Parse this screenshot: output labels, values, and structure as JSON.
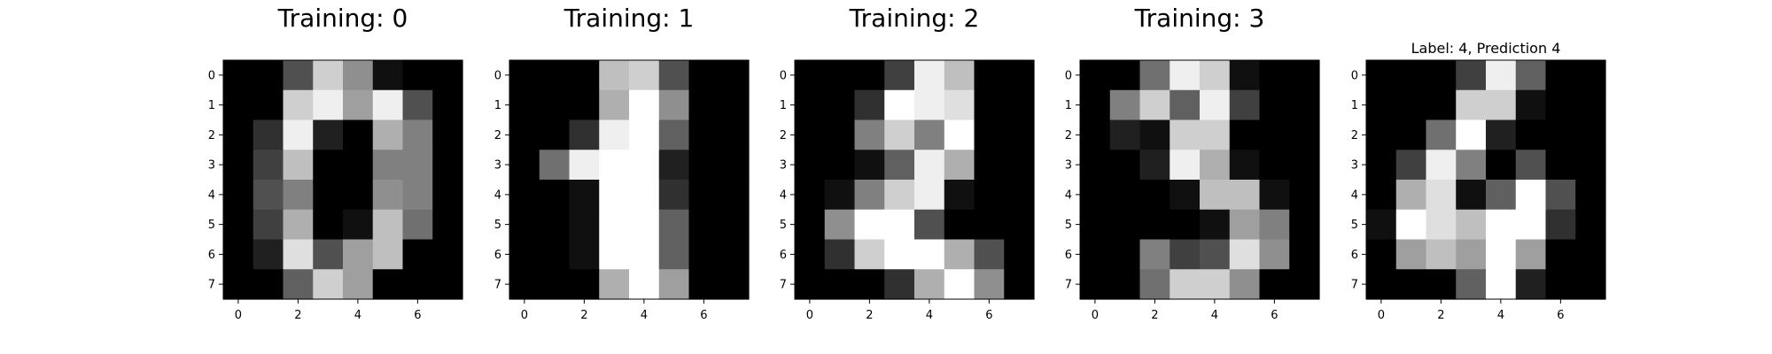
{
  "chart_data": [
    {
      "type": "heatmap",
      "title": "Training: 0",
      "colormap": "gray",
      "x_ticks": [
        "0",
        "2",
        "4",
        "6"
      ],
      "y_ticks": [
        "0",
        "1",
        "2",
        "3",
        "4",
        "5",
        "6",
        "7"
      ],
      "values": [
        [
          0,
          0,
          5,
          13,
          9,
          1,
          0,
          0
        ],
        [
          0,
          0,
          13,
          15,
          10,
          15,
          5,
          0
        ],
        [
          0,
          3,
          15,
          2,
          0,
          11,
          8,
          0
        ],
        [
          0,
          4,
          12,
          0,
          0,
          8,
          8,
          0
        ],
        [
          0,
          5,
          8,
          0,
          0,
          9,
          8,
          0
        ],
        [
          0,
          4,
          11,
          0,
          1,
          12,
          7,
          0
        ],
        [
          0,
          2,
          14,
          5,
          10,
          12,
          0,
          0
        ],
        [
          0,
          0,
          6,
          13,
          10,
          0,
          0,
          0
        ]
      ]
    },
    {
      "type": "heatmap",
      "title": "Training: 1",
      "colormap": "gray",
      "x_ticks": [
        "0",
        "2",
        "4",
        "6"
      ],
      "y_ticks": [
        "0",
        "1",
        "2",
        "3",
        "4",
        "5",
        "6",
        "7"
      ],
      "values": [
        [
          0,
          0,
          0,
          12,
          13,
          5,
          0,
          0
        ],
        [
          0,
          0,
          0,
          11,
          16,
          9,
          0,
          0
        ],
        [
          0,
          0,
          3,
          15,
          16,
          6,
          0,
          0
        ],
        [
          0,
          7,
          15,
          16,
          16,
          2,
          0,
          0
        ],
        [
          0,
          0,
          1,
          16,
          16,
          3,
          0,
          0
        ],
        [
          0,
          0,
          1,
          16,
          16,
          6,
          0,
          0
        ],
        [
          0,
          0,
          1,
          16,
          16,
          6,
          0,
          0
        ],
        [
          0,
          0,
          0,
          11,
          16,
          10,
          0,
          0
        ]
      ]
    },
    {
      "type": "heatmap",
      "title": "Training: 2",
      "colormap": "gray",
      "x_ticks": [
        "0",
        "2",
        "4",
        "6"
      ],
      "y_ticks": [
        "0",
        "1",
        "2",
        "3",
        "4",
        "5",
        "6",
        "7"
      ],
      "values": [
        [
          0,
          0,
          0,
          4,
          15,
          12,
          0,
          0
        ],
        [
          0,
          0,
          3,
          16,
          15,
          14,
          0,
          0
        ],
        [
          0,
          0,
          8,
          13,
          8,
          16,
          0,
          0
        ],
        [
          0,
          0,
          1,
          6,
          15,
          11,
          0,
          0
        ],
        [
          0,
          1,
          8,
          13,
          15,
          1,
          0,
          0
        ],
        [
          0,
          9,
          16,
          16,
          5,
          0,
          0,
          0
        ],
        [
          0,
          3,
          13,
          16,
          16,
          11,
          5,
          0
        ],
        [
          0,
          0,
          0,
          3,
          11,
          16,
          9,
          0
        ]
      ]
    },
    {
      "type": "heatmap",
      "title": "Training: 3",
      "colormap": "gray",
      "x_ticks": [
        "0",
        "2",
        "4",
        "6"
      ],
      "y_ticks": [
        "0",
        "1",
        "2",
        "3",
        "4",
        "5",
        "6",
        "7"
      ],
      "values": [
        [
          0,
          0,
          7,
          15,
          13,
          1,
          0,
          0
        ],
        [
          0,
          8,
          13,
          6,
          15,
          4,
          0,
          0
        ],
        [
          0,
          2,
          1,
          13,
          13,
          0,
          0,
          0
        ],
        [
          0,
          0,
          2,
          15,
          11,
          1,
          0,
          0
        ],
        [
          0,
          0,
          0,
          1,
          12,
          12,
          1,
          0
        ],
        [
          0,
          0,
          0,
          0,
          1,
          10,
          8,
          0
        ],
        [
          0,
          0,
          8,
          4,
          5,
          14,
          9,
          0
        ],
        [
          0,
          0,
          7,
          13,
          13,
          9,
          0,
          0
        ]
      ]
    },
    {
      "type": "heatmap",
      "title": "Label: 4, Prediction 4",
      "colormap": "gray",
      "x_ticks": [
        "0",
        "2",
        "4",
        "6"
      ],
      "y_ticks": [
        "0",
        "1",
        "2",
        "3",
        "4",
        "5",
        "6",
        "7"
      ],
      "values": [
        [
          0,
          0,
          0,
          4,
          15,
          6,
          0,
          0
        ],
        [
          0,
          0,
          0,
          13,
          13,
          1,
          0,
          0
        ],
        [
          0,
          0,
          7,
          16,
          2,
          0,
          0,
          0
        ],
        [
          0,
          4,
          15,
          8,
          0,
          5,
          0,
          0
        ],
        [
          0,
          11,
          14,
          1,
          6,
          16,
          5,
          0
        ],
        [
          1,
          16,
          14,
          12,
          16,
          16,
          3,
          0
        ],
        [
          0,
          10,
          12,
          10,
          16,
          10,
          0,
          0
        ],
        [
          0,
          0,
          0,
          6,
          16,
          2,
          0,
          0
        ]
      ]
    }
  ]
}
